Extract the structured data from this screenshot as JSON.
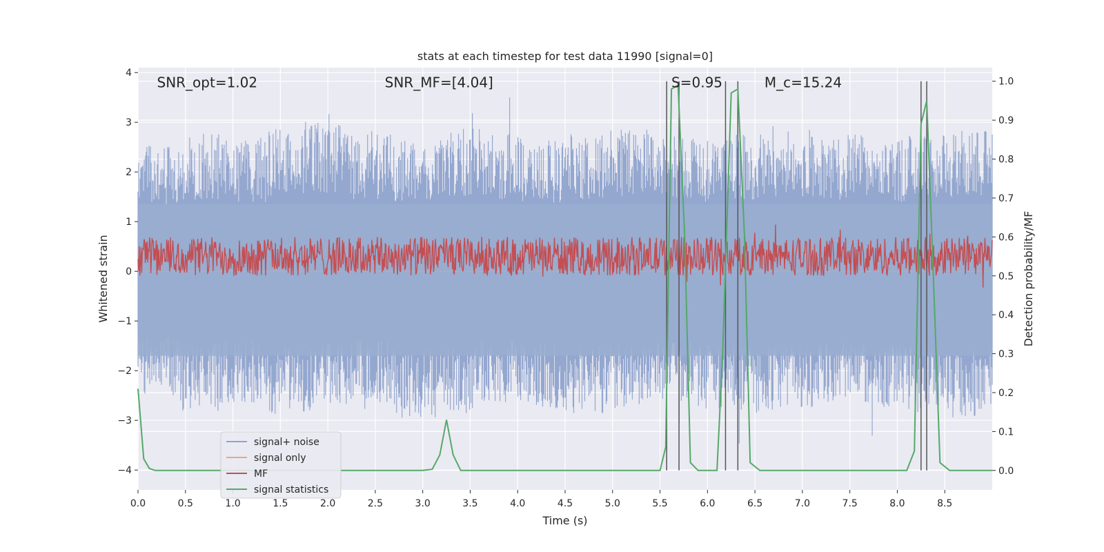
{
  "chart_data": {
    "type": "line",
    "title": "stats at each timestep for test data 11990 [signal=0]",
    "xlabel": "Time (s)",
    "ylabel": "Whitened strain",
    "ylabel_right": "Detection probability/MF",
    "xlim": [
      0.0,
      9.0
    ],
    "ylim": [
      -4.4,
      4.1
    ],
    "ylim_right": [
      -0.05,
      1.035
    ],
    "x_ticks": [
      0.0,
      0.5,
      1.0,
      1.5,
      2.0,
      2.5,
      3.0,
      3.5,
      4.0,
      4.5,
      5.0,
      5.5,
      6.0,
      6.5,
      7.0,
      7.5,
      8.0,
      8.5
    ],
    "x_tick_labels": [
      "0.0",
      "0.5",
      "1.0",
      "1.5",
      "2.0",
      "2.5",
      "3.0",
      "3.5",
      "4.0",
      "4.5",
      "5.0",
      "5.5",
      "6.0",
      "6.5",
      "7.0",
      "7.5",
      "8.0",
      "8.5"
    ],
    "y_ticks": [
      4,
      3,
      2,
      1,
      0,
      -1,
      -2,
      -3,
      -4
    ],
    "y_tick_labels": [
      "4",
      "3",
      "2",
      "1",
      "0",
      "−1",
      "−2",
      "−3",
      "−4"
    ],
    "y_ticks_right": [
      1.0,
      0.9,
      0.8,
      0.7,
      0.6,
      0.5,
      0.4,
      0.3,
      0.2,
      0.1,
      0.0
    ],
    "y_tick_labels_right": [
      "1.0",
      "0.9",
      "0.8",
      "0.7",
      "0.6",
      "0.5",
      "0.4",
      "0.3",
      "0.2",
      "0.1",
      "0.0"
    ],
    "grid": true,
    "legend_placement": "lower-left",
    "annotations": [
      {
        "text": "SNR_opt=1.02",
        "x": 0.2,
        "y": 3.8
      },
      {
        "text": "SNR_MF=[4.04]",
        "x": 2.6,
        "y": 3.8
      },
      {
        "text": "S=0.95",
        "x": 5.62,
        "y": 3.8
      },
      {
        "text": "M_c=15.24",
        "x": 6.6,
        "y": 3.8
      }
    ],
    "series": [
      {
        "name": "signal+ noise",
        "color": "#8fa3cc",
        "axis": "left",
        "style": "noise",
        "envelope_upper": [
          2.2,
          2.4,
          2.3,
          2.5,
          2.6,
          2.4,
          2.3,
          2.5,
          2.4,
          2.3,
          2.4,
          2.5,
          2.4,
          2.3,
          2.4,
          2.5,
          2.4,
          2.3,
          2.4,
          2.5
        ],
        "envelope_lower": [
          -2.2,
          -2.4,
          -2.3,
          -2.5,
          -2.4,
          -2.3,
          -2.6,
          -2.5,
          -2.3,
          -2.4,
          -2.5,
          -2.4,
          -2.3,
          -2.4,
          -2.5,
          -2.4,
          -2.3,
          -2.4,
          -2.5,
          -2.6
        ]
      },
      {
        "name": "signal only",
        "color": "#e8a58a",
        "axis": "left",
        "style": "line",
        "x": [
          0.0,
          9.0
        ],
        "y": [
          0.0,
          0.0
        ]
      },
      {
        "name": "MF",
        "color": "#c44e52",
        "axis": "right",
        "style": "band",
        "mean": 0.55,
        "spread": 0.05
      },
      {
        "name": "signal statistics",
        "color": "#55a868",
        "axis": "right",
        "style": "line",
        "x": [
          0.0,
          0.06,
          0.12,
          0.18,
          0.25,
          3.0,
          3.1,
          3.18,
          3.25,
          3.32,
          3.4,
          3.5,
          5.5,
          5.56,
          5.62,
          5.69,
          5.76,
          5.82,
          5.9,
          6.1,
          6.16,
          6.25,
          6.32,
          6.39,
          6.45,
          6.55,
          8.1,
          8.18,
          8.25,
          8.31,
          8.38,
          8.45,
          8.55,
          9.0
        ],
        "y": [
          0.21,
          0.03,
          0.005,
          0.0,
          0.0,
          0.0,
          0.003,
          0.04,
          0.13,
          0.04,
          0.0,
          0.0,
          0.0,
          0.06,
          0.98,
          0.99,
          0.6,
          0.02,
          0.0,
          0.0,
          0.3,
          0.97,
          0.98,
          0.6,
          0.02,
          0.0,
          0.0,
          0.05,
          0.89,
          0.95,
          0.5,
          0.02,
          0.0,
          0.0
        ]
      }
    ],
    "vertical_lines": [
      5.57,
      5.7,
      6.19,
      6.32,
      8.25,
      8.31
    ],
    "vline_color": "#555555",
    "colors": {
      "plot_background": "#eaeaf2",
      "grid": "#ffffff",
      "noise_band": "#99aed0"
    }
  }
}
